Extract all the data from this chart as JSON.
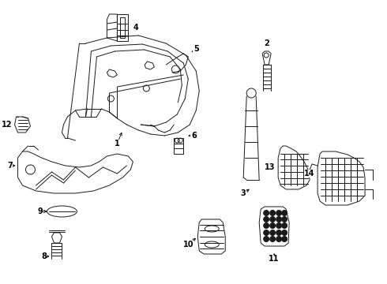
{
  "bg": "#ffffff",
  "lc": "#1a1a1a",
  "fig_w": 4.9,
  "fig_h": 3.6,
  "dpi": 100
}
